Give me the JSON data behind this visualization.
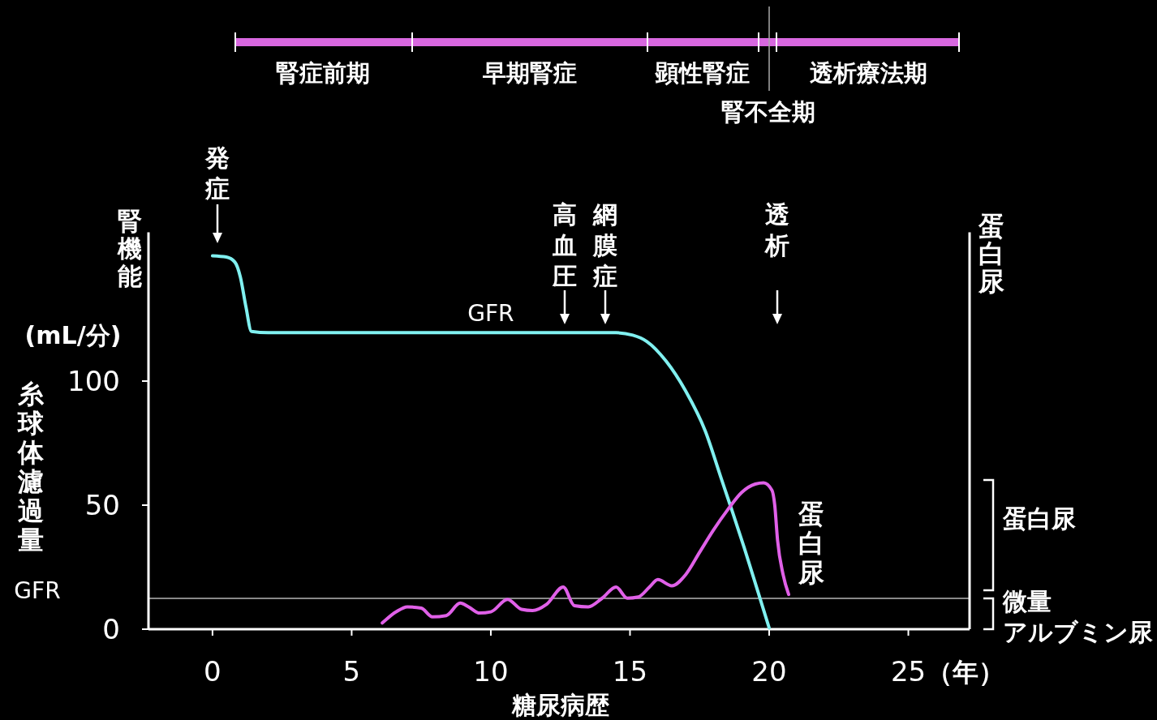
{
  "chart_data": {
    "type": "line",
    "xlabel": "糖尿病歴",
    "ylabel": "糸球体濾過量 GFR",
    "y2label": "蛋白尿",
    "xlim": [
      -2.3,
      27.2
    ],
    "xticks": [
      0,
      5,
      10,
      15,
      20,
      25
    ],
    "ylim": [
      0,
      160
    ],
    "yticks": [
      0,
      50,
      100
    ],
    "series": [
      {
        "name": "GFR",
        "color": "#80f0f0",
        "x": [
          0,
          0.5,
          0.8,
          1.0,
          1.2,
          1.4,
          2,
          8,
          14.5,
          15.1,
          15.6,
          16.3,
          17,
          17.7,
          18.3,
          18.6,
          19.1,
          19.6,
          20
        ],
        "values": [
          150.5,
          150,
          148,
          142,
          130,
          120,
          119.5,
          119.5,
          119.5,
          118.5,
          116,
          108,
          96,
          80,
          60,
          50,
          33,
          15,
          0.5
        ]
      },
      {
        "name": "蛋白尿",
        "color": "#e060e8",
        "x": [
          6.1,
          6.6,
          7,
          7.5,
          7.9,
          8.4,
          8.9,
          9.2,
          9.6,
          10,
          10.6,
          11.1,
          11.5,
          12,
          12.6,
          13,
          13.5,
          14,
          14.5,
          14.9,
          15.3,
          15.7,
          16,
          16.5,
          17,
          17.5,
          18,
          18.5,
          19,
          19.5,
          19.8,
          20.1,
          20.2,
          20.3,
          20.5,
          20.7
        ],
        "values": [
          2.5,
          7,
          9,
          8.5,
          5,
          5.5,
          10.5,
          9,
          6.5,
          7,
          12,
          8,
          7.5,
          10,
          17,
          9.5,
          9,
          12.5,
          17,
          12.5,
          13,
          17,
          20,
          17.5,
          22,
          31,
          40,
          48,
          55,
          58.5,
          59,
          56,
          50,
          36,
          22,
          14
        ]
      }
    ],
    "ref_lines": [
      {
        "axis": "y",
        "value": 12.4,
        "color": "#888888"
      }
    ],
    "annotations": [
      "腎機能",
      "(mL/分)",
      "（年）",
      "腎症前期",
      "早期腎症",
      "顕性腎症",
      "腎不全期",
      "透析療法期",
      "発症",
      "高血圧",
      "網膜症",
      "透析",
      "蛋白尿",
      "微量アルブミン尿"
    ]
  }
}
